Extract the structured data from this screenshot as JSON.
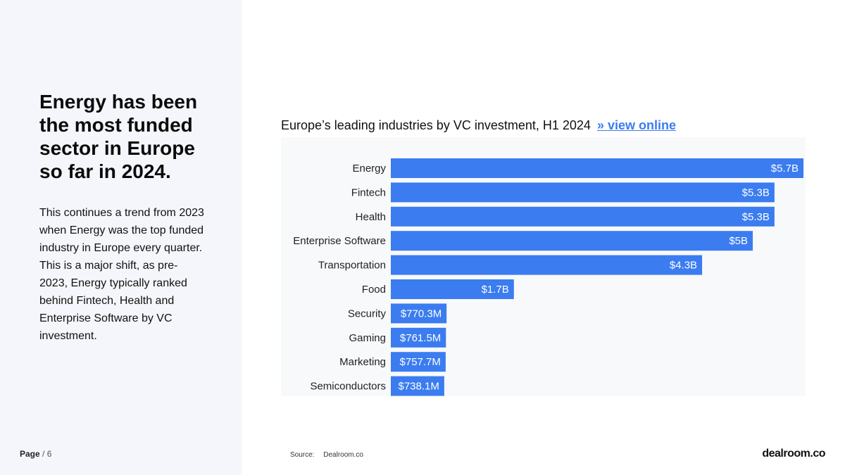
{
  "left": {
    "headline": "Energy has been the most funded sector in Europe so far in 2024.",
    "body": "This continues a trend from 2023 when Energy was the top funded industry in Europe every quarter. This is a major shift, as pre-2023, Energy typically ranked behind Fintech, Health and Enterprise Software by VC investment."
  },
  "footer": {
    "page_label": "Page",
    "page_number": "/ 6",
    "source_label": "Source:",
    "source_value": "Dealroom.co",
    "brand": "dealroom.co"
  },
  "chart": {
    "link_text": "» view online"
  },
  "colors": {
    "bar": "#3b7cf0",
    "bar_label": "#ffffff",
    "category_label": "#222222"
  },
  "chart_data": {
    "type": "bar",
    "orientation": "horizontal",
    "title": "Europe’s leading industries by VC investment, H1 2024",
    "categories": [
      "Energy",
      "Fintech",
      "Health",
      "Enterprise Software",
      "Transportation",
      "Food",
      "Security",
      "Gaming",
      "Marketing",
      "Semiconductors"
    ],
    "values": [
      5700,
      5300,
      5300,
      5000,
      4300,
      1700,
      770.3,
      761.5,
      757.7,
      738.1
    ],
    "value_unit": "USD millions",
    "data_labels": [
      "$5.7B",
      "$5.3B",
      "$5.3B",
      "$5B",
      "$4.3B",
      "$1.7B",
      "$770.3M",
      "$761.5M",
      "$757.7M",
      "$738.1M"
    ],
    "xlabel": "",
    "ylabel": "",
    "xlim": [
      0,
      5700
    ],
    "grid": false,
    "legend": "none"
  }
}
